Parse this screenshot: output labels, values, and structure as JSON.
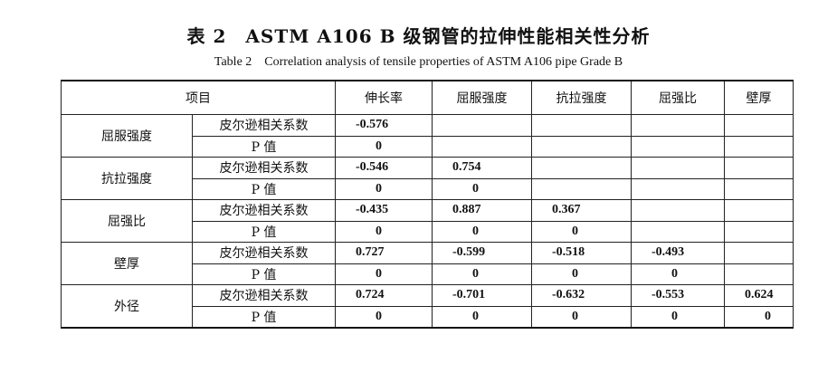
{
  "title": "表 2　ASTM A106 B 级钢管的拉伸性能相关性分析",
  "subtitle": "Table 2　Correlation analysis of tensile properties of ASTM A106 pipe Grade B",
  "headers": [
    "项目",
    "伸长率",
    "屈服强度",
    "抗拉强度",
    "屈强比",
    "壁厚"
  ],
  "row_labels": {
    "pearson": "皮尔逊相关系数",
    "p": "P 值"
  },
  "groups": [
    {
      "name": "屈服强度",
      "pearson": [
        "-0.576",
        "",
        "",
        "",
        ""
      ],
      "p": [
        "0",
        "",
        "",
        "",
        ""
      ]
    },
    {
      "name": "抗拉强度",
      "pearson": [
        "-0.546",
        "0.754",
        "",
        "",
        ""
      ],
      "p": [
        "0",
        "0",
        "",
        "",
        ""
      ]
    },
    {
      "name": "屈强比",
      "pearson": [
        "-0.435",
        "0.887",
        "0.367",
        "",
        ""
      ],
      "p": [
        "0",
        "0",
        "0",
        "",
        ""
      ]
    },
    {
      "name": "壁厚",
      "pearson": [
        "0.727",
        "-0.599",
        "-0.518",
        "-0.493",
        ""
      ],
      "p": [
        "0",
        "0",
        "0",
        "0",
        ""
      ]
    },
    {
      "name": "外径",
      "pearson": [
        "0.724",
        "-0.701",
        "-0.632",
        "-0.553",
        "0.624"
      ],
      "p": [
        "0",
        "0",
        "0",
        "0",
        "0"
      ]
    }
  ]
}
